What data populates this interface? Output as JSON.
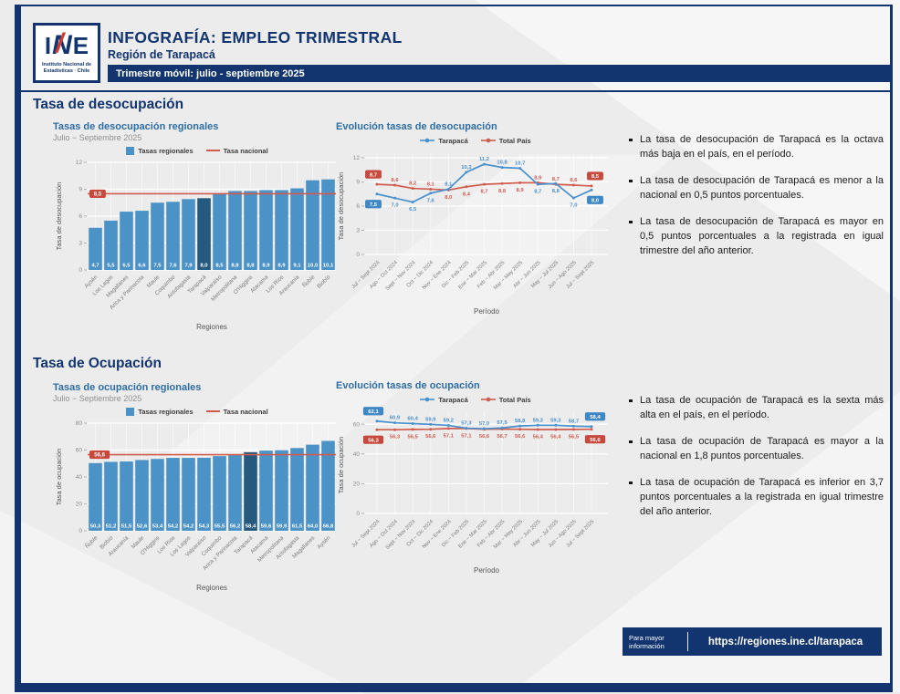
{
  "header": {
    "logo": {
      "l1": "I",
      "l2": "N",
      "l3": "E",
      "sub1": "Instituto Nacional de",
      "sub2": "Estadísticas · Chile"
    },
    "title": "INFOGRAFÍA: EMPLEO TRIMESTRAL",
    "subtitle": "Región de Tarapacá",
    "banner": "Trimestre móvil: julio - septiembre 2025"
  },
  "sections": [
    {
      "heading": "Tasa de desocupación",
      "bullets": [
        "La tasa de desocupación de Tarapacá es la octava más baja en el país, en el período.",
        "La tasa de desocupación de Tarapacá es menor a la nacional en 0,5 puntos porcentuales.",
        "La tasa de desocupación de Tarapacá es mayor en 0,5 puntos porcentuales a la registrada en igual trimestre del año anterior."
      ]
    },
    {
      "heading": "Tasa de Ocupación",
      "bullets": [
        "La tasa de ocupación de Tarapacá es la sexta más alta en el país, en el período.",
        "La tasa de ocupación de Tarapacá es mayor a la nacional en 1,8 puntos porcentuales.",
        "La tasa de ocupación de Tarapacá es inferior en 3,7 puntos porcentuales a la registrada en igual trimestre del año anterior."
      ]
    }
  ],
  "chart_data": [
    {
      "id": "bar_desocupacion",
      "type": "bar",
      "title": "Tasas de desocupación regionales",
      "subtitle": "Julio − Septiembre 2025",
      "legend": [
        "Tasas regionales",
        "Tasa nacional"
      ],
      "xlabel": "Regiones",
      "ylabel": "Tasa de desocupación",
      "ylim": [
        0,
        12
      ],
      "yticks": [
        0,
        3,
        6,
        9,
        12
      ],
      "grid": true,
      "categories": [
        "Aysén",
        "Los Lagos",
        "Magallanes",
        "Arica y Parinacota",
        "Maule",
        "Coquimbo",
        "Antofagasta",
        "Tarapacá",
        "Valparaíso",
        "Metropolitana",
        "O'Higgins",
        "Atacama",
        "Los Ríos",
        "Araucanía",
        "Ñuble",
        "Biobío"
      ],
      "values": [
        4.7,
        5.5,
        6.5,
        6.6,
        7.5,
        7.6,
        7.9,
        8.0,
        8.5,
        8.8,
        8.8,
        8.9,
        8.9,
        9.1,
        10.0,
        10.1
      ],
      "highlight_category": "Tarapacá",
      "national_value": 8.5,
      "national_label": "8,5"
    },
    {
      "id": "line_desocupacion",
      "type": "line",
      "title": "Evolución tasas de desocupación",
      "legend": [
        "Tarapacá",
        "Total País"
      ],
      "xlabel": "Período",
      "ylabel": "Tasa de desocupación",
      "ylim": [
        0,
        12
      ],
      "yticks": [
        0,
        3,
        6,
        9,
        12
      ],
      "grid": true,
      "x": [
        "Jul − Sept 2024",
        "Ago − Oct 2024",
        "Sept − Nov 2024",
        "Oct − Dic 2024",
        "Nov − Ene 2024",
        "Dic − Feb 2025",
        "Ene − Mar 2025",
        "Feb − Abr 2025",
        "Mar − May 2025",
        "Abr − Jun 2025",
        "May − Jul 2025",
        "Jun − Ago 2025",
        "Jul − Sept 2025"
      ],
      "series": [
        {
          "name": "Total País",
          "color_key": "red",
          "values": [
            8.7,
            8.6,
            8.2,
            8.1,
            8.0,
            8.4,
            8.7,
            8.8,
            8.9,
            8.9,
            8.7,
            8.6,
            8.5
          ],
          "label_side": [
            "above",
            "above",
            "above",
            "above",
            "below",
            "below",
            "below",
            "below",
            "below",
            "above",
            "above",
            "above",
            "above"
          ],
          "boxed": [
            0,
            12
          ]
        },
        {
          "name": "Tarapacá",
          "color_key": "blue",
          "values": [
            7.5,
            7.0,
            6.5,
            7.6,
            8.1,
            10.2,
            11.2,
            10.8,
            10.7,
            8.7,
            8.8,
            7.0,
            8.0
          ],
          "label_side": [
            "below",
            "below",
            "below",
            "below",
            "above",
            "above",
            "above",
            "above",
            "above",
            "below",
            "below",
            "below",
            "below"
          ],
          "boxed": [
            0,
            12
          ]
        }
      ]
    },
    {
      "id": "bar_ocupacion",
      "type": "bar",
      "title": "Tasas de ocupación regionales",
      "subtitle": "Julio − Septiembre 2025",
      "legend": [
        "Tasas regionales",
        "Tasa nacional"
      ],
      "xlabel": "Regiones",
      "ylabel": "Tasa de ocupación",
      "ylim": [
        0,
        80
      ],
      "yticks": [
        0,
        20,
        40,
        60,
        80
      ],
      "grid": true,
      "categories": [
        "Ñuble",
        "Biobío",
        "Araucanía",
        "Maule",
        "O'Higgins",
        "Los Ríos",
        "Los Lagos",
        "Valparaíso",
        "Coquimbo",
        "Arica y Parinacota",
        "Tarapacá",
        "Atacama",
        "Metropolitana",
        "Antofagasta",
        "Magallanes",
        "Aysén"
      ],
      "values": [
        50.3,
        51.2,
        51.5,
        52.6,
        53.4,
        54.2,
        54.2,
        54.3,
        55.5,
        56.2,
        58.4,
        59.6,
        59.9,
        61.5,
        64.0,
        66.8
      ],
      "highlight_category": "Tarapacá",
      "national_value": 56.6,
      "national_label": "56,6"
    },
    {
      "id": "line_ocupacion",
      "type": "line",
      "title": "Evolución tasas de ocupación",
      "legend": [
        "Tarapacá",
        "Total País"
      ],
      "xlabel": "Período",
      "ylabel": "Tasa de ocupación",
      "ylim": [
        0,
        65
      ],
      "yticks": [
        0,
        20,
        40,
        60
      ],
      "grid": true,
      "x": [
        "Jul − Sept 2024",
        "Ago − Oct 2024",
        "Sept − Nov 2024",
        "Oct − Dic 2024",
        "Nov − Ene 2024",
        "Dic − Feb 2025",
        "Ene − Mar 2025",
        "Feb − Abr 2025",
        "Mar − May 2025",
        "Abr − Jun 2025",
        "May − Jul 2025",
        "Jun − Ago 2025",
        "Jul − Sept 2025"
      ],
      "series": [
        {
          "name": "Total País",
          "color_key": "red",
          "values": [
            56.3,
            56.3,
            56.5,
            56.6,
            57.1,
            57.1,
            56.6,
            56.7,
            56.6,
            56.4,
            56.4,
            56.5,
            56.6
          ],
          "label_side": [
            "below",
            "below",
            "below",
            "below",
            "below",
            "below",
            "below",
            "below",
            "below",
            "below",
            "below",
            "below",
            "below"
          ],
          "boxed": [
            0,
            12
          ]
        },
        {
          "name": "Tarapacá",
          "color_key": "blue",
          "values": [
            62.1,
            60.9,
            60.4,
            59.9,
            59.2,
            57.3,
            57.0,
            57.5,
            58.8,
            59.3,
            59.3,
            58.7,
            58.4
          ],
          "label_side": [
            "above",
            "above",
            "above",
            "above",
            "above",
            "above",
            "above",
            "above",
            "above",
            "above",
            "above",
            "above",
            "above"
          ],
          "boxed": [
            0,
            12
          ]
        }
      ]
    }
  ],
  "colors": {
    "navy": "#12356f",
    "chart_title": "#2e6da4",
    "bar": "#4b92c6",
    "bar_highlight": "#255a7e",
    "red": "#d05c4e",
    "red_box": "#c7483c",
    "blue": "#4a90cd",
    "blue_box": "#3f88c5",
    "axis_text": "#8c8c8c",
    "cat_text": "#7c7c7c",
    "axis_title": "#555555"
  },
  "footer": {
    "info": "Para mayor información",
    "url": "https://regiones.ine.cl/tarapaca"
  }
}
